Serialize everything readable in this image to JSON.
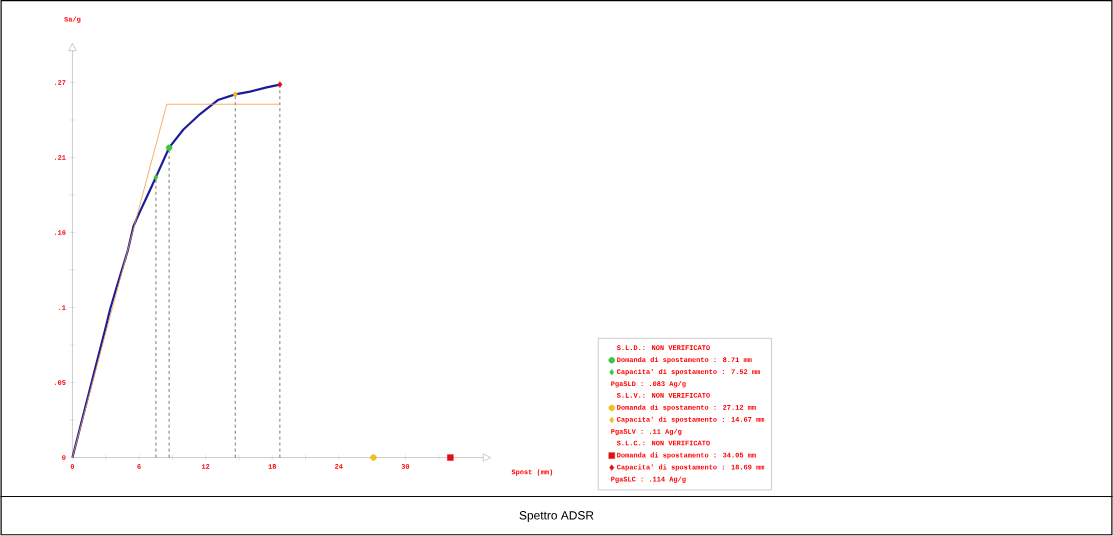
{
  "chart_data": {
    "type": "line",
    "title": "Spettro ADSR",
    "xlabel": "Spost (mm)",
    "ylabel": "Sa/g",
    "xlim": [
      0,
      37
    ],
    "ylim": [
      0,
      0.29
    ],
    "xticks": [
      0,
      {
        "value": 3,
        "label": null
      },
      6,
      {
        "value": 9,
        "label": null
      },
      12,
      {
        "value": 15,
        "label": null
      },
      18,
      {
        "value": 21,
        "label": null
      },
      24,
      {
        "value": 27,
        "label": null
      },
      30,
      {
        "value": 33,
        "label": null
      }
    ],
    "yticks": [
      0,
      {
        "value": 0.02675,
        "label": null
      },
      {
        "value": 0.0535,
        "label": ".05"
      },
      {
        "value": 0.08025,
        "label": null
      },
      {
        "value": 0.107,
        "label": ".1"
      },
      {
        "value": 0.13375,
        "label": null
      },
      {
        "value": 0.1605,
        "label": ".16"
      },
      {
        "value": 0.18725,
        "label": null
      },
      {
        "value": 0.214,
        "label": ".21"
      },
      {
        "value": 0.24075,
        "label": null
      },
      {
        "value": 0.2675,
        "label": ".27"
      }
    ],
    "legend": "bottom right",
    "grid": false,
    "series": [
      {
        "color": "#1c1c9c",
        "x": [
          0,
          1,
          2,
          3,
          3.4,
          4,
          5,
          5.5,
          6,
          7,
          7.52,
          8.71,
          10,
          11.5,
          13.1,
          14.67,
          16,
          17.5,
          18.69
        ],
        "values": [
          0,
          0.031,
          0.062,
          0.093,
          0.106,
          0.122,
          0.148,
          0.165,
          0.174,
          0.191,
          0.2,
          0.221,
          0.234,
          0.245,
          0.255,
          0.259,
          0.261,
          0.264,
          0.266
        ],
        "marker": "none"
      },
      {
        "color": "#f0a040",
        "x": [
          0,
          8.5,
          18.69
        ],
        "values": [
          0,
          0.252,
          0.252
        ],
        "marker": "none"
      },
      {
        "type": "scatter",
        "name": "Domanda di spostamento : 8.71 mm",
        "color": "#3cc83c",
        "x": [
          8.71
        ],
        "values": [
          0.221
        ],
        "marker": "circle"
      },
      {
        "type": "scatter",
        "name": "Capacita' di spostamento : 7.52 mm",
        "color": "#3cc83c",
        "x": [
          7.52
        ],
        "values": [
          0.2
        ],
        "marker": "diamond"
      },
      {
        "type": "scatter",
        "name": "Domanda di spostamento : 27.12 mm",
        "color": "#f0c020",
        "x": [
          27.12
        ],
        "values": [
          0
        ],
        "marker": "circle"
      },
      {
        "type": "scatter",
        "name": "Capacita' di spostamento : 14.67 mm",
        "color": "#f0c020",
        "x": [
          14.67
        ],
        "values": [
          0.259
        ],
        "marker": "diamond"
      },
      {
        "type": "scatter",
        "name": "Domanda di spostamento : 34.05 mm",
        "color": "#e01010",
        "x": [
          34.05
        ],
        "values": [
          0
        ],
        "marker": "square"
      },
      {
        "type": "scatter",
        "name": "Capacita' di spostamento : 18.69 mm",
        "color": "#e01010",
        "x": [
          18.69
        ],
        "values": [
          0.266
        ],
        "marker": "diamond"
      }
    ],
    "ref_lines": [
      {
        "axis": "x",
        "value": 7.52,
        "line_style": "dashed",
        "color": "#555555"
      },
      {
        "axis": "x",
        "value": 8.71,
        "line_style": "dashed",
        "color": "#555555"
      },
      {
        "axis": "x",
        "value": 14.67,
        "line_style": "dashed",
        "color": "#555555"
      },
      {
        "axis": "x",
        "value": 18.69,
        "line_style": "dashed",
        "color": "#555555"
      }
    ],
    "annotations": [
      "S.L.D.: NON VERIFICATO",
      "PgaSLD : .083 Ag/g",
      "S.L.V.: NON VERIFICATO",
      "PgaSLV : .11 Ag/g",
      "S.L.C.: NON VERIFICATO",
      "PgaSLC : .114 Ag/g"
    ]
  }
}
